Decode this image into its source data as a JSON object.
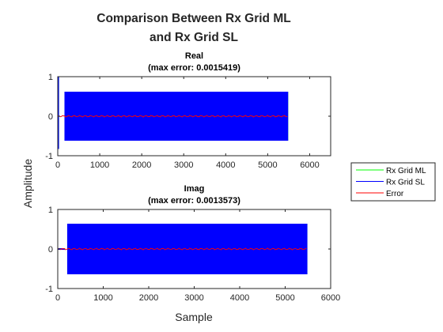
{
  "figure": {
    "title_line1": "Comparison Between Rx Grid ML",
    "title_line2": "and Rx Grid SL",
    "ylabel": "Amplitude",
    "xlabel": "Sample"
  },
  "legend": {
    "items": [
      {
        "label": "Rx Grid ML",
        "color": "#00ff00"
      },
      {
        "label": "Rx Grid SL",
        "color": "#0000ff"
      },
      {
        "label": "Error",
        "color": "#ff0000"
      }
    ]
  },
  "chart_data": [
    {
      "type": "line",
      "title": "Real",
      "subtitle": "(max error: 0.0015419)",
      "xlim": [
        0,
        6500
      ],
      "ylim": [
        -1,
        1
      ],
      "xticks": [
        0,
        1000,
        2000,
        3000,
        4000,
        5000,
        6000
      ],
      "yticks": [
        -1,
        0,
        1
      ],
      "max_error": 0.0015419,
      "series": [
        {
          "name": "Rx Grid ML",
          "color": "#00ff00",
          "envelope": [
            {
              "x": [
                0,
                30
              ],
              "range": [
                -0.83,
                1.0
              ]
            },
            {
              "x": [
                160,
                5488
              ],
              "range": [
                -0.62,
                0.62
              ]
            }
          ]
        },
        {
          "name": "Rx Grid SL",
          "color": "#0000ff",
          "envelope": [
            {
              "x": [
                0,
                30
              ],
              "range": [
                -0.83,
                1.0
              ]
            },
            {
              "x": [
                160,
                5488
              ],
              "range": [
                -0.62,
                0.62
              ]
            }
          ]
        },
        {
          "name": "Error",
          "color": "#ff0000",
          "envelope": [
            {
              "x": [
                0,
                5488
              ],
              "range": [
                -0.0015419,
                0.0015419
              ]
            }
          ]
        }
      ]
    },
    {
      "type": "line",
      "title": "Imag",
      "subtitle": "(max error: 0.0013573)",
      "xlim": [
        0,
        6000
      ],
      "ylim": [
        -1,
        1
      ],
      "xticks": [
        0,
        1000,
        2000,
        3000,
        4000,
        5000,
        6000
      ],
      "yticks": [
        -1,
        0,
        1
      ],
      "max_error": 0.0013573,
      "series": [
        {
          "name": "Rx Grid ML",
          "color": "#00ff00",
          "envelope": [
            {
              "x": [
                0,
                160
              ],
              "range": [
                -0.02,
                0.02
              ]
            },
            {
              "x": [
                208,
                5488
              ],
              "range": [
                -0.64,
                0.64
              ]
            }
          ]
        },
        {
          "name": "Rx Grid SL",
          "color": "#0000ff",
          "envelope": [
            {
              "x": [
                0,
                160
              ],
              "range": [
                -0.02,
                0.02
              ]
            },
            {
              "x": [
                208,
                5488
              ],
              "range": [
                -0.64,
                0.64
              ]
            }
          ]
        },
        {
          "name": "Error",
          "color": "#ff0000",
          "envelope": [
            {
              "x": [
                0,
                5488
              ],
              "range": [
                -0.0013573,
                0.0013573
              ]
            }
          ]
        }
      ]
    }
  ]
}
